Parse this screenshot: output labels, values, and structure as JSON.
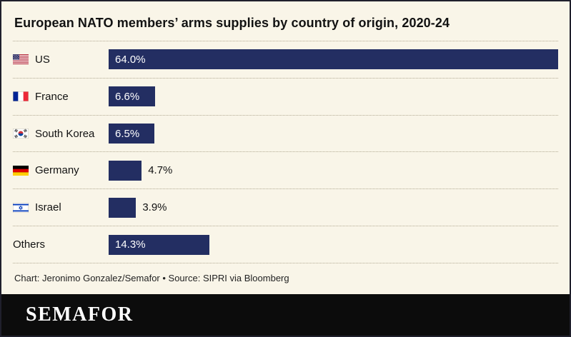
{
  "title": "European NATO members’ arms supplies by country of origin, 2020-24",
  "footer": {
    "credit": "Chart: Jeronimo Gonzalez/Semafor • Source: SIPRI via Bloomberg",
    "brand": "SEMAFOR"
  },
  "colors": {
    "background": "#f9f5e8",
    "bar": "#232e62",
    "border": "#20202c",
    "footer_band": "#0c0c0c",
    "value_label_inside": "#ffffff",
    "value_label_outside": "#121212"
  },
  "chart_data": {
    "type": "bar",
    "orientation": "horizontal",
    "title": "European NATO members’ arms supplies by country of origin, 2020-24",
    "xlabel": "",
    "ylabel": "",
    "xlim": [
      0,
      64
    ],
    "grid": false,
    "legend": false,
    "categories": [
      "US",
      "France",
      "South Korea",
      "Germany",
      "Israel",
      "Others"
    ],
    "values": [
      64.0,
      6.6,
      6.5,
      4.7,
      3.9,
      14.3
    ],
    "value_labels": [
      "64.0%",
      "6.6%",
      "6.5%",
      "4.7%",
      "3.9%",
      "14.3%"
    ],
    "rows": [
      {
        "label": "US",
        "value": 64.0,
        "display": "64.0%",
        "flag": "us",
        "label_inside": true
      },
      {
        "label": "France",
        "value": 6.6,
        "display": "6.6%",
        "flag": "france",
        "label_inside": true
      },
      {
        "label": "South Korea",
        "value": 6.5,
        "display": "6.5%",
        "flag": "south-korea",
        "label_inside": true
      },
      {
        "label": "Germany",
        "value": 4.7,
        "display": "4.7%",
        "flag": "germany",
        "label_inside": false
      },
      {
        "label": "Israel",
        "value": 3.9,
        "display": "3.9%",
        "flag": "israel",
        "label_inside": false
      },
      {
        "label": "Others",
        "value": 14.3,
        "display": "14.3%",
        "flag": null,
        "label_inside": true
      }
    ]
  }
}
